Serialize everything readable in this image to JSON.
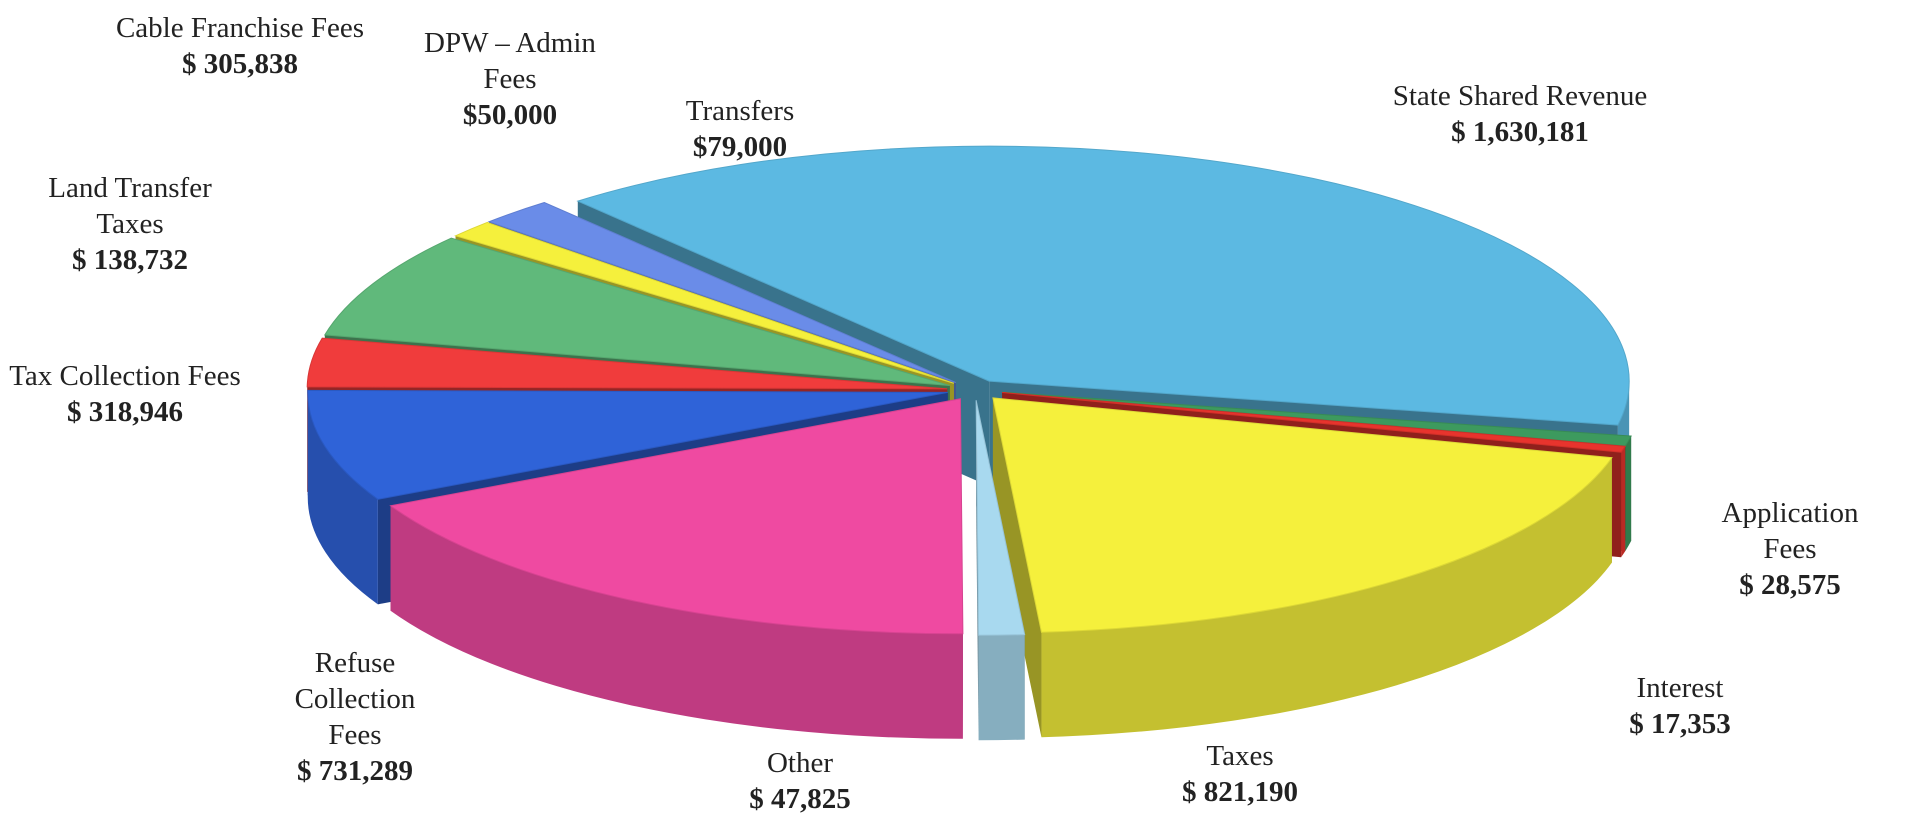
{
  "chart_data": {
    "type": "pie3d",
    "categories": [
      "State Shared Revenue",
      "Application Fees",
      "Interest",
      "Taxes",
      "Other",
      "Refuse Collection Fees",
      "Tax Collection Fees",
      "Land Transfer Taxes",
      "Cable Franchise Fees",
      "DPW – Admin Fees",
      "Transfers"
    ],
    "values": [
      1630181,
      28575,
      17353,
      821190,
      47825,
      731289,
      318946,
      138732,
      305838,
      50000,
      79000
    ],
    "value_labels": [
      "$ 1,630,181",
      "$ 28,575",
      "$ 17,353",
      "$ 821,190",
      "$ 47,825",
      "$ 731,289",
      "$ 318,946",
      "$ 138,732",
      "$ 305,838",
      "$50,000",
      "$79,000"
    ],
    "colors": [
      "#5cb9e2",
      "#3d9a5e",
      "#e8342d",
      "#f5f03c",
      "#a8d9ef",
      "#ef4aa1",
      "#2f63d8",
      "#f03c3c",
      "#60b97b",
      "#f5f03c",
      "#6a8ce8"
    ]
  }
}
